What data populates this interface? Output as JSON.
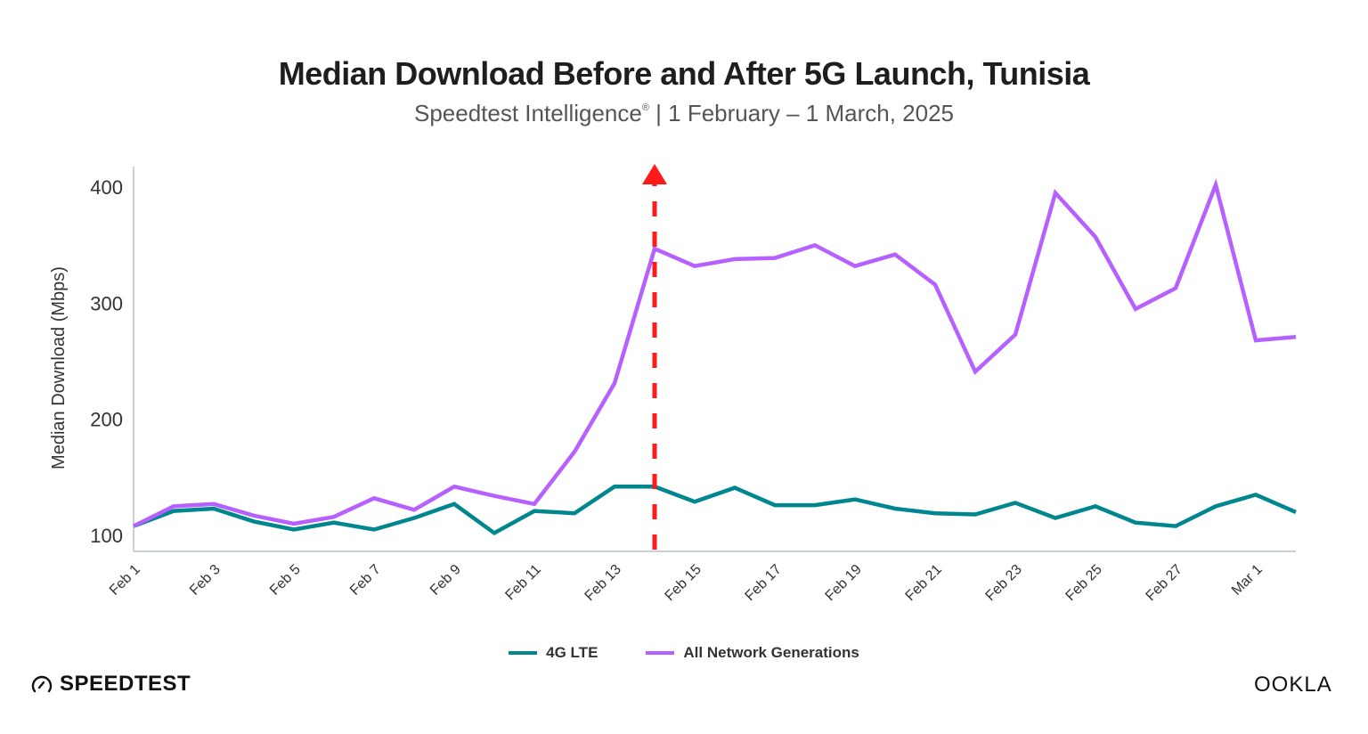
{
  "header": {
    "title": "Median Download Before and After 5G Launch, Tunisia",
    "subtitle_source": "Speedtest Intelligence",
    "subtitle_reg": "®",
    "subtitle_range": " | 1 February – 1 March, 2025"
  },
  "chart_data": {
    "type": "line",
    "title": "Median Download Before and After 5G Launch, Tunisia",
    "subtitle": "Speedtest Intelligence® | 1 February – 1 March, 2025",
    "xlabel": "",
    "ylabel": "Median Download (Mbps)",
    "ylim": [
      92,
      415
    ],
    "yticks": [
      100,
      200,
      300,
      400
    ],
    "x": [
      "Feb 1",
      "Feb 2",
      "Feb 3",
      "Feb 4",
      "Feb 5",
      "Feb 6",
      "Feb 7",
      "Feb 8",
      "Feb 9",
      "Feb 10",
      "Feb 11",
      "Feb 12",
      "Feb 13",
      "Feb 14",
      "Feb 15",
      "Feb 16",
      "Feb 17",
      "Feb 18",
      "Feb 19",
      "Feb 20",
      "Feb 21",
      "Feb 22",
      "Feb 23",
      "Feb 24",
      "Feb 25",
      "Feb 26",
      "Feb 27",
      "Feb 28",
      "Mar 1",
      "Mar 2"
    ],
    "xtick_labels": [
      "Feb 1",
      "Feb 3",
      "Feb 5",
      "Feb 7",
      "Feb 9",
      "Feb 11",
      "Feb 13",
      "Feb 15",
      "Feb 17",
      "Feb 19",
      "Feb 21",
      "Feb 23",
      "Feb 25",
      "Feb 27",
      "Mar 1"
    ],
    "grid": false,
    "legend_position": "bottom-center",
    "series": [
      {
        "name": "4G LTE",
        "color": "#00868f",
        "values": [
          108,
          121,
          123,
          112,
          105,
          111,
          105,
          115,
          127,
          102,
          121,
          119,
          142,
          142,
          129,
          141,
          126,
          126,
          131,
          123,
          119,
          118,
          128,
          115,
          125,
          111,
          108,
          125,
          135,
          120
        ]
      },
      {
        "name": "All Network Generations",
        "color": "#b660ff",
        "values": [
          108,
          125,
          127,
          117,
          110,
          116,
          132,
          122,
          142,
          134,
          127,
          172,
          231,
          347,
          332,
          338,
          339,
          350,
          332,
          342,
          316,
          241,
          273,
          395,
          357,
          295,
          313,
          402,
          268,
          271
        ]
      }
    ],
    "annotations": [
      {
        "type": "vertical-dashed-arrow",
        "x": "Feb 14",
        "color": "#ff1a1a",
        "meaning": "5G launch"
      }
    ]
  },
  "footer": {
    "brand_left": "SPEEDTEST",
    "brand_right": "OOKLA"
  }
}
